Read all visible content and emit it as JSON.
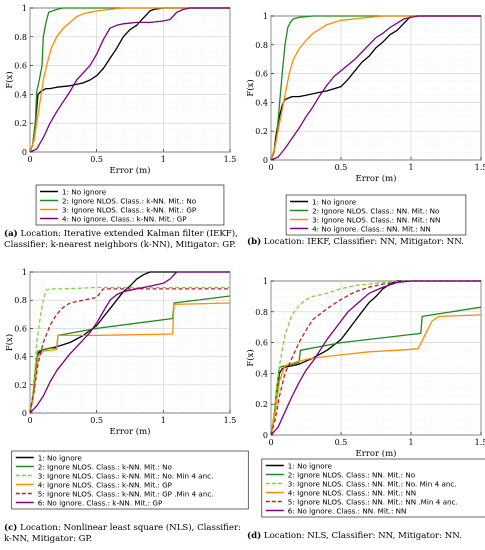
{
  "panels": [
    {
      "id": "a",
      "ylabel": "F(x)",
      "xlabel": "Error (m)",
      "xticks": [
        "0",
        "0.5",
        "1",
        "1.5"
      ],
      "yticks": [
        "0",
        "0.2",
        "0.4",
        "0.6",
        "0.8",
        "1"
      ],
      "xlim": [
        0,
        1.5
      ],
      "ylim": [
        0,
        1
      ],
      "caption_label": "(a)",
      "caption_text": "Location: Iterative extended Kalman filter (IEKF), Classifier: k-nearest neighbors (k-NN), Mitigator: GP.",
      "legend": [
        "1: No ignore",
        "2: Ignore NLOS. Class.: k-NN. Mit.: No",
        "3: Ignore NLOS. Class.: k-NN. Mit.: GP",
        "4: No ignore. Class.: k-NN. Mit.: GP"
      ]
    },
    {
      "id": "b",
      "ylabel": "F(x)",
      "xlabel": "Error (m)",
      "xticks": [
        "0",
        "0.5",
        "1",
        "1.5"
      ],
      "yticks": [
        "0",
        "0.2",
        "0.4",
        "0.6",
        "0.8",
        "1"
      ],
      "xlim": [
        0,
        1.5
      ],
      "ylim": [
        0,
        1
      ],
      "caption_label": "(b)",
      "caption_text": "Location: IEKF, Classifier: NN, Mitigator: NN.",
      "legend": [
        "1: No ignore",
        "2: Ignore NLOS. Class.: NN. Mit.: No",
        "3: Ignore NLOS. Class.: NN. Mit.: NN",
        "4: No ignore. Class.: NN. Mit.: NN"
      ]
    },
    {
      "id": "c",
      "ylabel": "F(x)",
      "xlabel": "Error (m)",
      "xticks": [
        "0",
        "0.5",
        "1",
        "1.5"
      ],
      "yticks": [
        "0",
        "0.2",
        "0.4",
        "0.6",
        "0.8",
        "1"
      ],
      "xlim": [
        0,
        1.5
      ],
      "ylim": [
        0,
        1
      ],
      "caption_label": "(c)",
      "caption_text": "Location: Nonlinear least square (NLS), Classifier: k-NN, Mitigator: GP.",
      "legend": [
        "1: No ignore",
        "2: Ignore NLOS. Class.: k-NN. Mit.: No",
        "3: Ignore NLOS. Class.: k-NN. Mit.: No. Min 4 anc.",
        "4: Ignore NLOS. Class.: k-NN. Mit.: GP",
        "5: Ignore NLOS. Class.: k-NN. Mit.: GP .Min 4 anc.",
        "6: No ignore. Class.: k-NN. Mit.: GP"
      ]
    },
    {
      "id": "d",
      "ylabel": "F(x)",
      "xlabel": "Error (m)",
      "xticks": [
        "0",
        "0.5",
        "1",
        "1.5"
      ],
      "yticks": [
        "0",
        "0.2",
        "0.4",
        "0.6",
        "0.8",
        "1"
      ],
      "xlim": [
        0,
        1.5
      ],
      "ylim": [
        0,
        1
      ],
      "caption_label": "(d)",
      "caption_text": "Location: NLS, Classifier: NN, Mitigator: NN.",
      "legend": [
        "1: No ignore",
        "2: Ignore NLOS. Class.: NN. Mit.: No",
        "3: Ignore NLOS. Class.: NN. Mit.: No. Min 4 anc.",
        "4: Ignore NLOS. Class.: NN. Mit.: NN",
        "5: Ignore NLOS. Class.: NN. Mit.: NN .Min 4 anc.",
        "6: No ignore. Class.: NN. Mit.: NN"
      ]
    }
  ],
  "chart_data": [
    {
      "type": "line",
      "xlim": [
        0,
        1.5
      ],
      "ylim": [
        0,
        1
      ],
      "grid": true,
      "legend_position": "below",
      "series": [
        {
          "name": "1: No ignore",
          "color": "#000000",
          "dash": "solid",
          "x": [
            0,
            0.02,
            0.04,
            0.06,
            0.08,
            0.1,
            0.12,
            0.15,
            0.2,
            0.3,
            0.4,
            0.45,
            0.5,
            0.55,
            0.6,
            0.65,
            0.7,
            0.75,
            0.8,
            0.85,
            0.9,
            0.93,
            1.0,
            1.05,
            1.5
          ],
          "y": [
            0,
            0.05,
            0.2,
            0.4,
            0.42,
            0.43,
            0.44,
            0.44,
            0.45,
            0.46,
            0.48,
            0.5,
            0.53,
            0.58,
            0.65,
            0.72,
            0.8,
            0.85,
            0.88,
            0.93,
            0.98,
            0.99,
            1.0,
            1.0,
            1.0
          ]
        },
        {
          "name": "2: Ignore NLOS. Class.: k-NN. Mit.: No",
          "color": "#1f8a1f",
          "dash": "solid",
          "x": [
            0,
            0.02,
            0.04,
            0.05,
            0.07,
            0.09,
            0.1,
            0.12,
            0.14,
            0.17,
            0.2,
            0.25,
            1.5
          ],
          "y": [
            0,
            0.05,
            0.2,
            0.42,
            0.5,
            0.6,
            0.8,
            0.9,
            0.97,
            0.98,
            0.99,
            1.0,
            1.0
          ]
        },
        {
          "name": "3: Ignore NLOS. Class.: k-NN. Mit.: GP",
          "color": "#ff8c00",
          "dash": "solid",
          "x": [
            0,
            0.03,
            0.05,
            0.08,
            0.1,
            0.13,
            0.16,
            0.2,
            0.25,
            0.3,
            0.35,
            0.4,
            0.5,
            0.6,
            0.7,
            1.5
          ],
          "y": [
            0,
            0.08,
            0.2,
            0.38,
            0.5,
            0.62,
            0.72,
            0.8,
            0.86,
            0.9,
            0.94,
            0.96,
            0.98,
            0.99,
            1.0,
            1.0
          ]
        },
        {
          "name": "4: No ignore. Class.: k-NN. Mit.: GP",
          "color": "#800080",
          "dash": "solid",
          "x": [
            0,
            0.05,
            0.1,
            0.15,
            0.2,
            0.25,
            0.3,
            0.35,
            0.4,
            0.45,
            0.5,
            0.55,
            0.6,
            0.65,
            0.7,
            0.8,
            0.9,
            1.0,
            1.05,
            1.1,
            1.15,
            1.2,
            1.5
          ],
          "y": [
            0,
            0.02,
            0.1,
            0.2,
            0.28,
            0.35,
            0.42,
            0.5,
            0.55,
            0.6,
            0.68,
            0.78,
            0.86,
            0.88,
            0.89,
            0.9,
            0.9,
            0.91,
            0.92,
            0.97,
            0.99,
            1.0,
            1.0
          ]
        }
      ]
    },
    {
      "type": "line",
      "xlim": [
        0,
        1.5
      ],
      "ylim": [
        0,
        1
      ],
      "grid": true,
      "legend_position": "below",
      "series": [
        {
          "name": "1: No ignore",
          "color": "#000000",
          "dash": "solid",
          "x": [
            0,
            0.02,
            0.04,
            0.06,
            0.08,
            0.1,
            0.15,
            0.2,
            0.25,
            0.3,
            0.35,
            0.4,
            0.5,
            0.55,
            0.6,
            0.65,
            0.7,
            0.75,
            0.8,
            0.85,
            0.9,
            0.95,
            1.0,
            1.05,
            1.5
          ],
          "y": [
            0,
            0.05,
            0.2,
            0.3,
            0.38,
            0.42,
            0.44,
            0.44,
            0.45,
            0.46,
            0.47,
            0.48,
            0.51,
            0.56,
            0.62,
            0.68,
            0.72,
            0.78,
            0.82,
            0.87,
            0.9,
            0.95,
            1.0,
            1.0,
            1.0
          ]
        },
        {
          "name": "2: Ignore NLOS. Class.: NN. Mit.: No",
          "color": "#1f8a1f",
          "dash": "solid",
          "x": [
            0,
            0.02,
            0.04,
            0.06,
            0.08,
            0.1,
            0.12,
            0.14,
            0.16,
            0.2,
            0.3,
            1.5
          ],
          "y": [
            0,
            0.05,
            0.15,
            0.38,
            0.6,
            0.8,
            0.92,
            0.96,
            0.98,
            0.99,
            1.0,
            1.0
          ]
        },
        {
          "name": "3: Ignore NLOS. Class.: NN. Mit.: NN",
          "color": "#ff8c00",
          "dash": "solid",
          "x": [
            0,
            0.03,
            0.06,
            0.1,
            0.13,
            0.16,
            0.2,
            0.25,
            0.3,
            0.35,
            0.4,
            0.5,
            0.6,
            0.7,
            0.8,
            1.5
          ],
          "y": [
            0,
            0.1,
            0.25,
            0.45,
            0.6,
            0.7,
            0.77,
            0.83,
            0.88,
            0.91,
            0.94,
            0.97,
            0.98,
            0.99,
            1.0,
            1.0
          ]
        },
        {
          "name": "4: No ignore. Class.: NN. Mit.: NN",
          "color": "#800080",
          "dash": "solid",
          "x": [
            0,
            0.05,
            0.1,
            0.15,
            0.2,
            0.25,
            0.3,
            0.35,
            0.4,
            0.45,
            0.5,
            0.55,
            0.6,
            0.65,
            0.7,
            0.75,
            0.8,
            0.85,
            0.9,
            0.95,
            1.0,
            1.05,
            1.5
          ],
          "y": [
            0,
            0.02,
            0.08,
            0.15,
            0.22,
            0.3,
            0.37,
            0.45,
            0.52,
            0.58,
            0.62,
            0.66,
            0.7,
            0.75,
            0.8,
            0.85,
            0.88,
            0.92,
            0.95,
            0.98,
            0.99,
            1.0,
            1.0
          ]
        }
      ]
    },
    {
      "type": "line",
      "xlim": [
        0,
        1.5
      ],
      "ylim": [
        0,
        1
      ],
      "grid": true,
      "legend_position": "below",
      "series": [
        {
          "name": "1: No ignore",
          "color": "#000000",
          "dash": "solid",
          "x": [
            0,
            0.02,
            0.04,
            0.06,
            0.08,
            0.1,
            0.15,
            0.2,
            0.3,
            0.4,
            0.5,
            0.55,
            0.6,
            0.65,
            0.7,
            0.75,
            0.8,
            0.85,
            0.9,
            0.95,
            1.0,
            1.5
          ],
          "y": [
            0,
            0.1,
            0.3,
            0.42,
            0.44,
            0.45,
            0.46,
            0.47,
            0.5,
            0.55,
            0.62,
            0.68,
            0.74,
            0.8,
            0.86,
            0.9,
            0.95,
            0.98,
            1.0,
            1.0,
            1.0,
            1.0
          ]
        },
        {
          "name": "2: Ignore NLOS. Class.: k-NN. Mit.: No",
          "color": "#1f8a1f",
          "dash": "solid",
          "x": [
            0,
            0.02,
            0.04,
            0.06,
            0.1,
            0.15,
            0.2,
            0.21,
            0.5,
            1.07,
            1.08,
            1.5
          ],
          "y": [
            0,
            0.1,
            0.3,
            0.44,
            0.45,
            0.46,
            0.46,
            0.55,
            0.6,
            0.67,
            0.78,
            0.83
          ]
        },
        {
          "name": "3: Ignore NLOS. Class.: k-NN. Mit.: No. Min 4 anc.",
          "color": "#7fd13b",
          "dash": "dashed",
          "x": [
            0,
            0.03,
            0.05,
            0.08,
            0.1,
            0.12,
            0.15,
            0.25,
            0.5,
            1.0,
            1.5
          ],
          "y": [
            0,
            0.2,
            0.5,
            0.7,
            0.8,
            0.87,
            0.88,
            0.88,
            0.89,
            0.89,
            0.89
          ]
        },
        {
          "name": "4: Ignore NLOS. Class.: k-NN. Mit.: GP",
          "color": "#ff8c00",
          "dash": "solid",
          "x": [
            0,
            0.03,
            0.06,
            0.1,
            0.2,
            0.21,
            0.5,
            1.07,
            1.08,
            1.5
          ],
          "y": [
            0,
            0.15,
            0.4,
            0.44,
            0.45,
            0.55,
            0.55,
            0.56,
            0.77,
            0.78
          ]
        },
        {
          "name": "5: Ignore NLOS. Class.: k-NN. Mit.: GP .Min 4 anc.",
          "color": "#b22222",
          "dash": "dashed",
          "x": [
            0,
            0.03,
            0.06,
            0.1,
            0.15,
            0.2,
            0.25,
            0.3,
            0.4,
            0.5,
            0.55,
            1.0,
            1.5
          ],
          "y": [
            0,
            0.15,
            0.35,
            0.5,
            0.62,
            0.7,
            0.75,
            0.78,
            0.8,
            0.82,
            0.88,
            0.88,
            0.88
          ]
        },
        {
          "name": "6: No ignore. Class.: k-NN. Mit.: GP",
          "color": "#800080",
          "dash": "solid",
          "x": [
            0,
            0.05,
            0.1,
            0.15,
            0.2,
            0.25,
            0.3,
            0.35,
            0.4,
            0.45,
            0.5,
            0.55,
            0.6,
            0.65,
            0.7,
            0.8,
            0.9,
            1.0,
            1.05,
            1.1,
            1.5
          ],
          "y": [
            0,
            0.05,
            0.12,
            0.22,
            0.3,
            0.36,
            0.42,
            0.47,
            0.52,
            0.57,
            0.64,
            0.72,
            0.8,
            0.84,
            0.86,
            0.88,
            0.9,
            0.92,
            0.95,
            1.0,
            1.0
          ]
        }
      ]
    },
    {
      "type": "line",
      "xlim": [
        0,
        1.5
      ],
      "ylim": [
        0,
        1
      ],
      "grid": true,
      "legend_position": "below",
      "series": [
        {
          "name": "1: No ignore",
          "color": "#000000",
          "dash": "solid",
          "x": [
            0,
            0.02,
            0.04,
            0.06,
            0.08,
            0.1,
            0.15,
            0.2,
            0.3,
            0.4,
            0.5,
            0.55,
            0.6,
            0.65,
            0.7,
            0.75,
            0.8,
            0.85,
            0.9,
            0.92,
            1.5
          ],
          "y": [
            0,
            0.1,
            0.25,
            0.4,
            0.43,
            0.44,
            0.45,
            0.46,
            0.5,
            0.55,
            0.62,
            0.68,
            0.74,
            0.8,
            0.86,
            0.9,
            0.95,
            0.98,
            1.0,
            1.0,
            1.0
          ]
        },
        {
          "name": "2: Ignore NLOS. Class.: NN. Mit.: No",
          "color": "#1f8a1f",
          "dash": "solid",
          "x": [
            0,
            0.02,
            0.04,
            0.06,
            0.1,
            0.15,
            0.2,
            0.21,
            0.5,
            1.07,
            1.08,
            1.5
          ],
          "y": [
            0,
            0.1,
            0.3,
            0.44,
            0.45,
            0.46,
            0.47,
            0.55,
            0.6,
            0.66,
            0.77,
            0.83
          ]
        },
        {
          "name": "3: Ignore NLOS. Class.: NN. Mit.: No. Min 4 anc.",
          "color": "#7fd13b",
          "dash": "dashed",
          "x": [
            0,
            0.03,
            0.06,
            0.1,
            0.15,
            0.2,
            0.25,
            0.3,
            0.4,
            0.5,
            0.6,
            0.8,
            1.0,
            1.5
          ],
          "y": [
            0,
            0.2,
            0.45,
            0.65,
            0.78,
            0.84,
            0.88,
            0.9,
            0.92,
            0.95,
            0.97,
            0.99,
            1.0,
            1.0
          ]
        },
        {
          "name": "4: Ignore NLOS. Class.: NN. Mit.: NN",
          "color": "#ff8c00",
          "dash": "solid",
          "x": [
            0,
            0.03,
            0.06,
            0.1,
            0.2,
            0.3,
            0.5,
            0.7,
            0.9,
            1.05,
            1.1,
            1.15,
            1.2,
            1.5
          ],
          "y": [
            0,
            0.15,
            0.35,
            0.45,
            0.48,
            0.5,
            0.52,
            0.54,
            0.55,
            0.56,
            0.65,
            0.74,
            0.77,
            0.78
          ]
        },
        {
          "name": "5: Ignore NLOS. Class.: NN. Mit.: NN .Min 4 anc.",
          "color": "#b22222",
          "dash": "dashed",
          "x": [
            0,
            0.03,
            0.06,
            0.1,
            0.15,
            0.2,
            0.25,
            0.3,
            0.4,
            0.5,
            0.6,
            0.7,
            0.8,
            0.9,
            1.0,
            1.5
          ],
          "y": [
            0,
            0.1,
            0.25,
            0.4,
            0.5,
            0.6,
            0.68,
            0.75,
            0.82,
            0.88,
            0.93,
            0.96,
            0.98,
            0.99,
            1.0,
            1.0
          ]
        },
        {
          "name": "6: No ignore. Class.: NN. Mit.: NN",
          "color": "#800080",
          "dash": "solid",
          "x": [
            0,
            0.05,
            0.1,
            0.15,
            0.2,
            0.25,
            0.3,
            0.35,
            0.4,
            0.45,
            0.5,
            0.55,
            0.6,
            0.65,
            0.7,
            0.8,
            0.9,
            1.0,
            1.05,
            1.5
          ],
          "y": [
            0,
            0.05,
            0.15,
            0.25,
            0.34,
            0.42,
            0.48,
            0.55,
            0.62,
            0.68,
            0.74,
            0.8,
            0.84,
            0.88,
            0.92,
            0.96,
            0.99,
            1.0,
            1.0,
            1.0
          ]
        }
      ]
    }
  ]
}
